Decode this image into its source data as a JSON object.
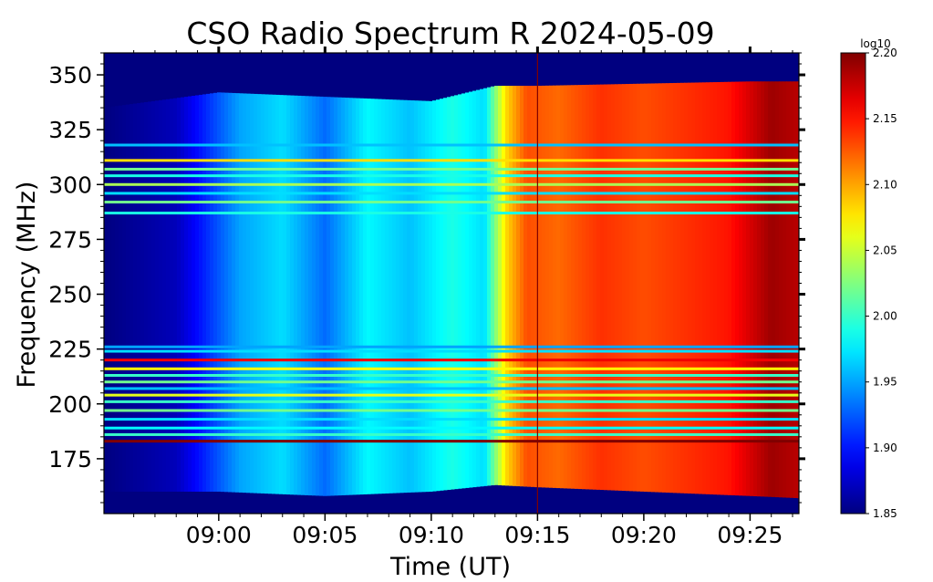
{
  "chart_data": {
    "type": "heatmap",
    "title": "CSO Radio Spectrum R 2024-05-09",
    "xlabel": "Time (UT)",
    "ylabel": "Frequency (MHz)",
    "x_tick_labels": [
      "09:00",
      "09:05",
      "09:10",
      "09:15",
      "09:20",
      "09:25"
    ],
    "x_ticks_minutes": [
      540,
      545,
      550,
      555,
      560,
      565
    ],
    "xlim_minutes": [
      534.6,
      567.3
    ],
    "y_ticks": [
      175,
      200,
      225,
      250,
      275,
      300,
      325,
      350
    ],
    "ylim": [
      150,
      360
    ],
    "colorbar": {
      "label": "log10",
      "ticks": [
        "1.85",
        "1.90",
        "1.95",
        "2.00",
        "2.05",
        "2.10",
        "2.15",
        "2.20"
      ],
      "range": [
        1.85,
        2.2
      ],
      "colormap": "jet"
    },
    "marker_line_minute": 555,
    "intensity_profile": {
      "time_minutes": [
        534.6,
        538,
        541,
        543,
        545,
        547,
        549,
        551,
        552.5,
        553.5,
        554.5,
        556,
        558,
        560,
        562,
        564,
        566,
        567.3
      ],
      "level": [
        1.85,
        1.87,
        1.95,
        1.97,
        1.93,
        1.98,
        1.96,
        1.99,
        1.97,
        2.08,
        2.13,
        2.12,
        2.14,
        2.13,
        2.14,
        2.15,
        2.19,
        2.18
      ]
    },
    "emission_band_mhz": {
      "time_minutes": [
        534.6,
        540,
        545,
        550,
        553,
        555,
        560,
        565,
        567.3
      ],
      "lower": [
        160,
        160,
        158,
        160,
        163,
        162,
        160,
        158,
        157
      ],
      "upper": [
        335,
        342,
        340,
        338,
        345,
        345,
        346,
        347,
        347
      ]
    },
    "interference_lines": [
      {
        "freq": 183,
        "level": 2.2
      },
      {
        "freq": 186,
        "level": 2.0
      },
      {
        "freq": 189,
        "level": 1.98
      },
      {
        "freq": 193,
        "level": 1.97
      },
      {
        "freq": 197,
        "level": 2.02
      },
      {
        "freq": 201,
        "level": 2.0
      },
      {
        "freq": 204,
        "level": 2.06
      },
      {
        "freq": 207,
        "level": 1.96
      },
      {
        "freq": 210,
        "level": 2.02
      },
      {
        "freq": 213,
        "level": 2.0
      },
      {
        "freq": 216,
        "level": 2.07
      },
      {
        "freq": 220,
        "level": 2.16
      },
      {
        "freq": 224,
        "level": 1.97
      },
      {
        "freq": 226,
        "level": 1.95
      },
      {
        "freq": 287,
        "level": 1.99
      },
      {
        "freq": 292,
        "level": 2.02
      },
      {
        "freq": 296,
        "level": 1.97
      },
      {
        "freq": 300,
        "level": 2.04
      },
      {
        "freq": 304,
        "level": 1.99
      },
      {
        "freq": 307,
        "level": 2.02
      },
      {
        "freq": 311,
        "level": 2.08
      },
      {
        "freq": 318,
        "level": 1.96
      }
    ]
  }
}
